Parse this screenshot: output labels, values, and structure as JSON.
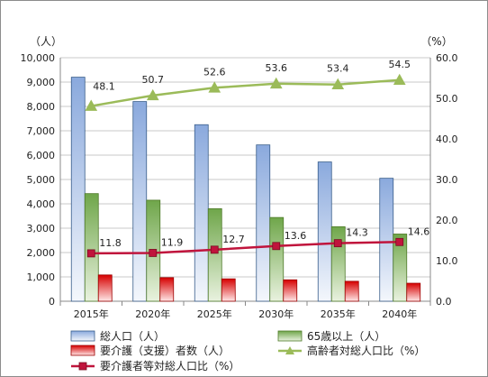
{
  "chart_data": {
    "type": "bar",
    "categories": [
      "2015年",
      "2020年",
      "2025年",
      "2030年",
      "2035年",
      "2040年"
    ],
    "left_axis": {
      "unit_label": "（人）",
      "ylim": [
        0,
        10000
      ],
      "step": 1000,
      "tick_labels": [
        "0",
        "1,000",
        "2,000",
        "3,000",
        "4,000",
        "5,000",
        "6,000",
        "7,000",
        "8,000",
        "9,000",
        "10,000"
      ]
    },
    "right_axis": {
      "unit_label": "（%）",
      "ylim": [
        0,
        60
      ],
      "step": 10,
      "tick_labels": [
        "0.0",
        "10.0",
        "20.0",
        "30.0",
        "40.0",
        "50.0",
        "60.0"
      ]
    },
    "series": [
      {
        "name": "総人口（人）",
        "kind": "bar",
        "axis": "left",
        "color": "#4f81bd",
        "values": [
          9200,
          8200,
          7250,
          6420,
          5720,
          5050
        ]
      },
      {
        "name": "65歳以上（人）",
        "kind": "bar",
        "axis": "left",
        "color": "#77a84b",
        "values": [
          4420,
          4150,
          3800,
          3440,
          3060,
          2760
        ]
      },
      {
        "name": "要介護（支援）者数（人）",
        "kind": "bar",
        "axis": "left",
        "color": "#ff0000",
        "values": [
          1080,
          970,
          920,
          880,
          820,
          740
        ]
      },
      {
        "name": "高齢者対総人口比（%）",
        "kind": "line",
        "axis": "right",
        "color": "#9bbb59",
        "marker": "triangle",
        "values": [
          48.1,
          50.7,
          52.6,
          53.6,
          53.4,
          54.5
        ],
        "labels": [
          "48.1",
          "50.7",
          "52.6",
          "53.6",
          "53.4",
          "54.5"
        ]
      },
      {
        "name": "要介護者等対総人口比（%）",
        "kind": "line",
        "axis": "right",
        "color": "#c0143c",
        "marker": "square",
        "values": [
          11.8,
          11.9,
          12.7,
          13.6,
          14.3,
          14.6
        ],
        "labels": [
          "11.8",
          "11.9",
          "12.7",
          "13.6",
          "14.3",
          "14.6"
        ]
      }
    ],
    "grid": true,
    "legend_position": "bottom"
  }
}
